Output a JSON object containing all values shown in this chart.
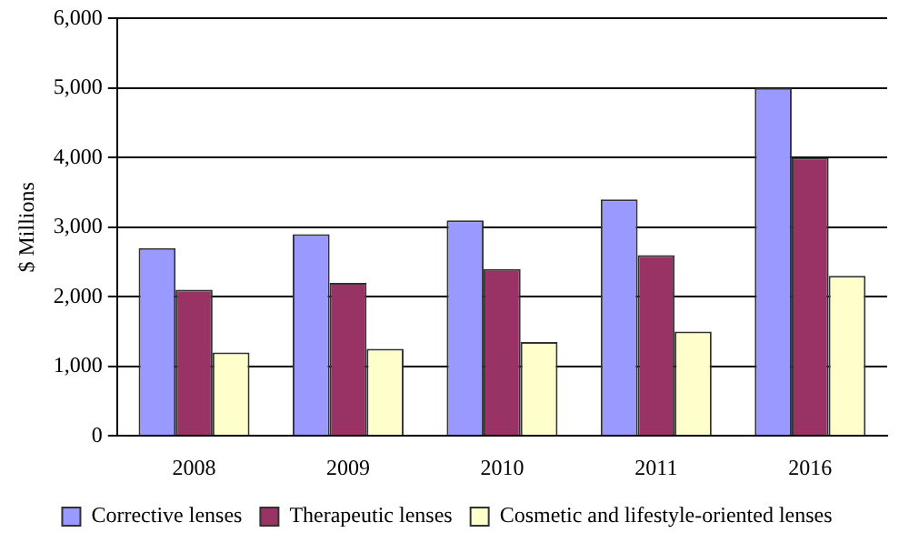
{
  "chart_data": {
    "type": "bar",
    "ylabel": "$ Millions",
    "categories": [
      "2008",
      "2009",
      "2010",
      "2011",
      "2016"
    ],
    "series": [
      {
        "name": "Corrective lenses",
        "color": "#9999ff",
        "values": [
          2700,
          2900,
          3100,
          3400,
          5000
        ]
      },
      {
        "name": "Therapeutic lenses",
        "color": "#993366",
        "values": [
          2100,
          2200,
          2400,
          2600,
          4000
        ]
      },
      {
        "name": "Cosmetic and lifestyle-oriented lenses",
        "color": "#ffffcc",
        "values": [
          1200,
          1250,
          1350,
          1500,
          2300
        ]
      }
    ],
    "ylim": [
      0,
      6000
    ],
    "yticks": [
      0,
      {
        "value": 1000,
        "label": "1,000"
      },
      {
        "value": 2000,
        "label": "2,000"
      },
      {
        "value": 3000,
        "label": "3,000"
      },
      {
        "value": 4000,
        "label": "4,000"
      },
      {
        "value": 5000,
        "label": "5,000"
      },
      {
        "value": 6000,
        "label": "6,000"
      }
    ],
    "grid": "y",
    "legend": "bottom"
  }
}
